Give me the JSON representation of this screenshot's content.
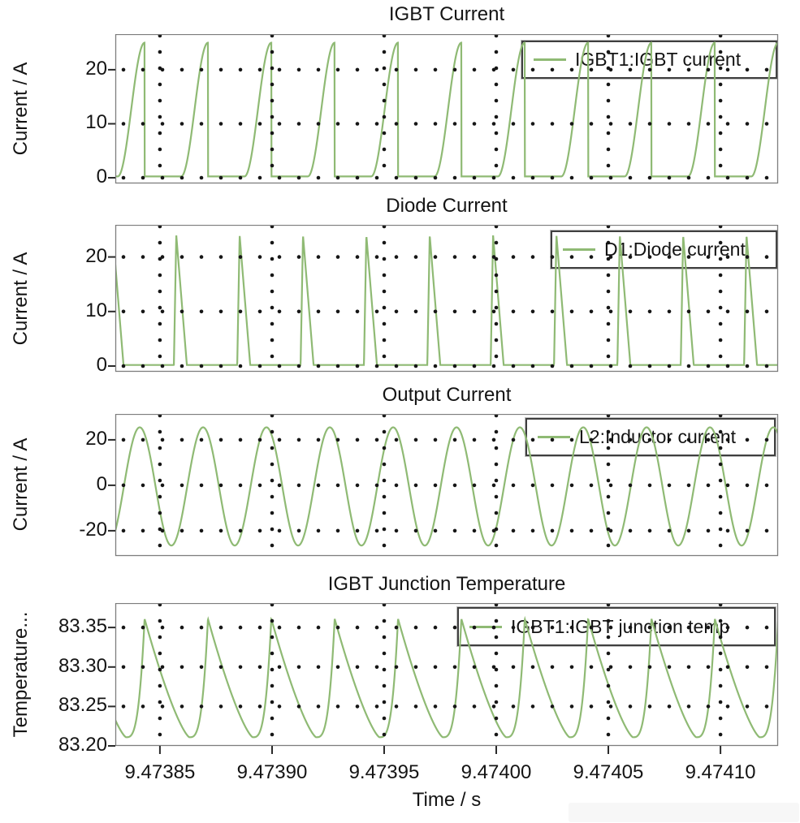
{
  "figure": {
    "background": "#ffffff",
    "line_color": "#8fba74",
    "grid_dot_color": "#161616",
    "frame_color": "#7d7d7d",
    "tick_color": "#2a2a2a",
    "text_color": "#141414"
  },
  "chart_data": {
    "type": "line",
    "description": "Four stacked oscilloscope panels of a switched power converter simulation",
    "shared_x": {
      "label": "Time / s",
      "xlim": [
        9.4738301,
        9.4741257
      ],
      "ticks": [
        9.47385,
        9.4739,
        9.47395,
        9.474,
        9.47405,
        9.4741
      ],
      "tick_labels": [
        "9.47385",
        "9.47390",
        "9.47395",
        "9.47400",
        "9.47405",
        "9.47410"
      ],
      "grid": "dotted"
    },
    "switching": {
      "period_s": 2.826e-05,
      "phase_ref_s": 9.4738312
    },
    "panels": [
      {
        "title": "IGBT Current",
        "ylabel": "Current / A",
        "legend": "IGBT1:IGBT current",
        "yticks": [
          0,
          10,
          20
        ],
        "ytick_labels": [
          "0",
          "10",
          "20"
        ],
        "ylim": [
          -1.05,
          26.6
        ],
        "signal": {
          "shape": "s_rise_pulse",
          "on_frac": 0.423,
          "peak": 25.0,
          "base": 0.25
        }
      },
      {
        "title": "Diode Current",
        "ylabel": "Current / A",
        "legend": "D1:Diode current",
        "yticks": [
          0,
          10,
          20
        ],
        "ytick_labels": [
          "0",
          "10",
          "20"
        ],
        "ylim": [
          -1.04,
          25.9
        ],
        "signal": {
          "shape": "triangle_spike",
          "rise_start_frac": 0.885,
          "peak_frac": 0.923,
          "end_frac": 1.09,
          "peak": 24.0,
          "base": 0.2
        }
      },
      {
        "title": "Output Current",
        "ylabel": "Current / A",
        "legend": "L2:Inductor current",
        "yticks": [
          -20,
          0,
          20
        ],
        "ytick_labels": [
          "-20",
          "0",
          "20"
        ],
        "ylim": [
          -31.1,
          31.4
        ],
        "signal": {
          "shape": "sine",
          "amplitude": 26.0,
          "offset": -0.5,
          "zero_up_frac": 0.096
        }
      },
      {
        "title": "IGBT Junction Temperature",
        "ylabel": "Temperature...",
        "legend": "IGBT1:IGBT junction temp",
        "yticks": [
          83.2,
          83.25,
          83.3,
          83.35
        ],
        "ytick_labels": [
          "83.20",
          "83.25",
          "83.30",
          "83.35"
        ],
        "ylim": [
          83.2,
          83.381
        ],
        "signal": {
          "shape": "thermal_sawtooth",
          "min": 83.211,
          "peak": 83.361,
          "min_frac": 0.13,
          "peak_frac": 0.423,
          "rise_pow": 3.2,
          "decay_pow": 1.35
        }
      }
    ]
  }
}
